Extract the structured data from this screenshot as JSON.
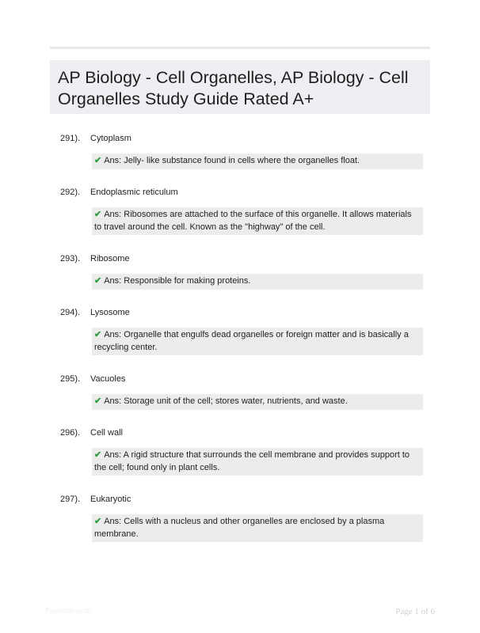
{
  "title": "AP Biology - Cell Organelles, AP Biology - Cell Organelles Study Guide Rated A+",
  "questions": [
    {
      "number": "291).",
      "term": "Cytoplasm",
      "answer": "Ans: Jelly- like substance found in cells where the organelles float."
    },
    {
      "number": "292).",
      "term": "Endoplasmic reticulum",
      "answer": "Ans: Ribosomes are attached to the surface of this organelle. It allows materials to travel around the cell. Known as the \"highway\" of the cell."
    },
    {
      "number": "293).",
      "term": "Ribosome",
      "answer": "Ans: Responsible for making proteins."
    },
    {
      "number": "294).",
      "term": "Lysosome",
      "answer": "Ans: Organelle that engulfs dead organelles or foreign matter and is basically a recycling center."
    },
    {
      "number": "295).",
      "term": "Vacuoles",
      "answer": "Ans: Storage unit of the cell; stores water, nutrients, and waste."
    },
    {
      "number": "296).",
      "term": "Cell wall",
      "answer": "Ans: A rigid structure that surrounds the cell membrane and provides support to the cell; found only in plant cells."
    },
    {
      "number": "297).",
      "term": "Eukaryotic",
      "answer": "Ans: Cells with a nucleus and other organelles are enclosed by a plasma membrane."
    }
  ],
  "icons": {
    "answer_marker": "checkmark-icon",
    "check_glyph": "✔",
    "check_color": "#2e9e3f"
  },
  "footer": {
    "watermark": "Papertitle.com",
    "page": "Page 1 of 6"
  }
}
